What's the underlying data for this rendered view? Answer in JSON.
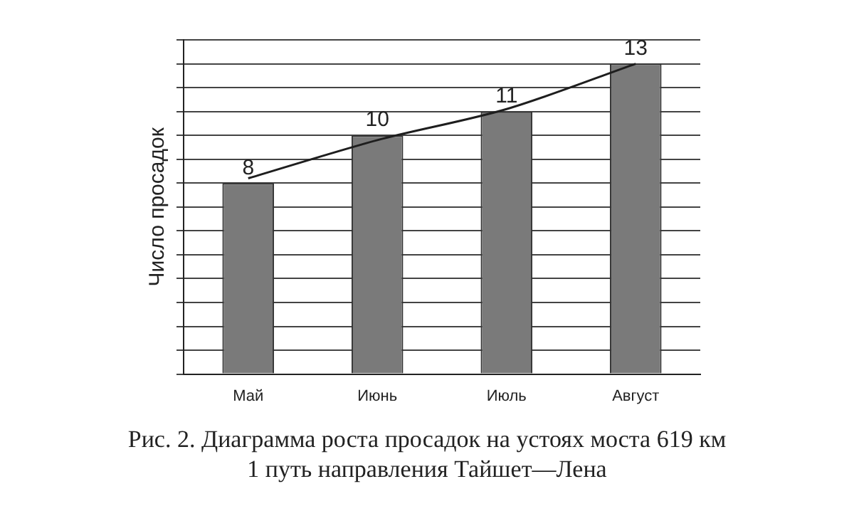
{
  "chart_data": {
    "type": "bar",
    "ylabel": "Число просадок",
    "categories": [
      "Май",
      "Июнь",
      "Июль",
      "Август"
    ],
    "series": [
      {
        "color": "#7a7a7a",
        "values": [
          8,
          10,
          11,
          13
        ],
        "value_labels": [
          "8",
          "10",
          "11",
          "13"
        ]
      },
      {
        "type": "line",
        "color": "#1e1e1e",
        "x": [
          "Май",
          "Июнь",
          "Июль",
          "Август"
        ],
        "values": [
          8.2,
          9.8,
          11.1,
          13.0
        ]
      }
    ],
    "ylim": [
      0,
      14
    ],
    "yticks": [
      {
        "value": 0,
        "label": null
      },
      {
        "value": 1,
        "label": null
      },
      {
        "value": 2,
        "label": null
      },
      {
        "value": 3,
        "label": null
      },
      {
        "value": 4,
        "label": null
      },
      {
        "value": 5,
        "label": null
      },
      {
        "value": 6,
        "label": null
      },
      {
        "value": 7,
        "label": null
      },
      {
        "value": 8,
        "label": null
      },
      {
        "value": 9,
        "label": null
      },
      {
        "value": 10,
        "label": null
      },
      {
        "value": 11,
        "label": null
      },
      {
        "value": 12,
        "label": null
      },
      {
        "value": 13,
        "label": null
      },
      {
        "value": 14,
        "label": null
      }
    ],
    "grid": "y",
    "tick_labels": "x",
    "legend": false,
    "annotations": [
      "Рис. 2. Диаграмма роста просадок на устоях моста 619 км",
      "1 путь направления Тайшет—Лена"
    ]
  }
}
